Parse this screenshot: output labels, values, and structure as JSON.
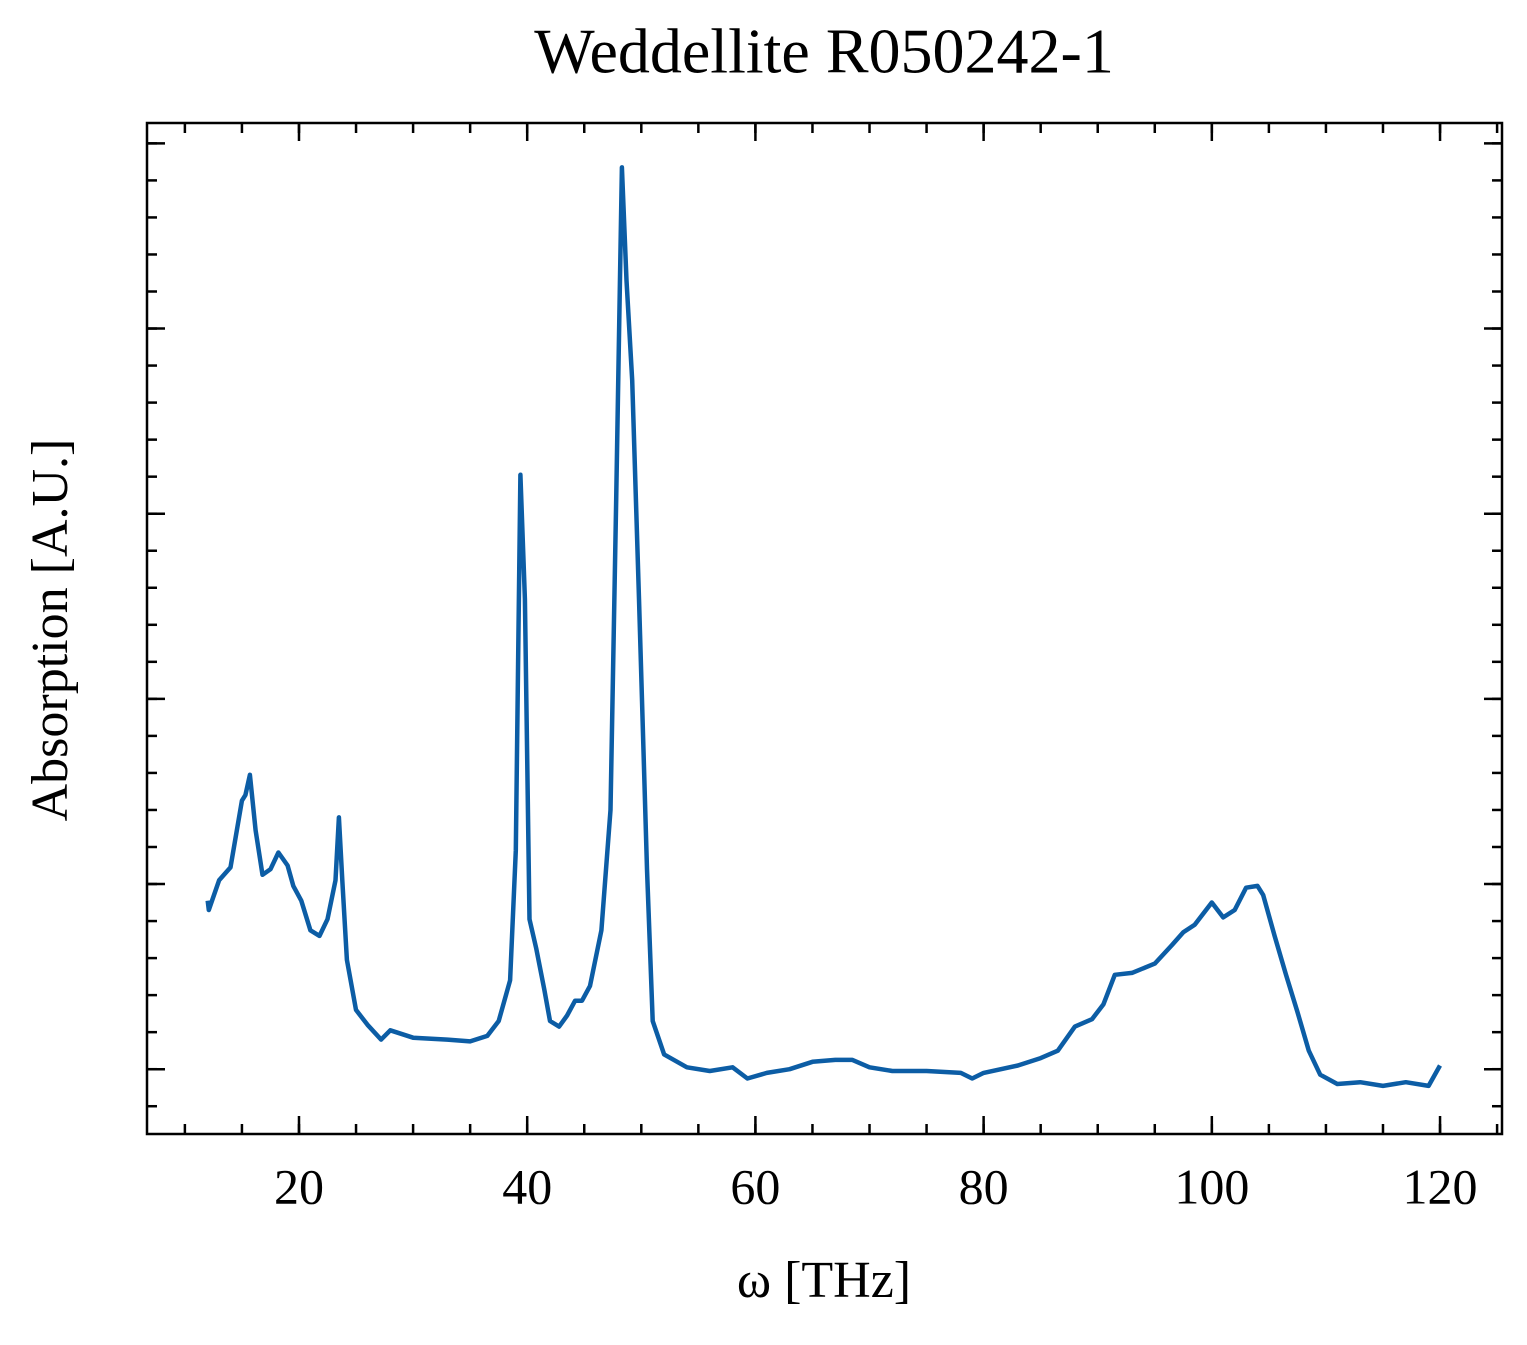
{
  "chart_data": {
    "type": "line",
    "title": "Weddellite R050242-1",
    "xlabel": "ω [THz]",
    "ylabel": "Absorption [A.U.]",
    "x": [
      12.0,
      12.1,
      13,
      14,
      15,
      15.3,
      15.7,
      16.2,
      16.8,
      17.5,
      18.2,
      19,
      19.5,
      20.2,
      21,
      21.8,
      22.5,
      23.2,
      23.5,
      23.8,
      24.2,
      25,
      26,
      27.2,
      28,
      30,
      33,
      35,
      36.5,
      37.5,
      38.5,
      39.0,
      39.4,
      39.8,
      40.2,
      40.8,
      41.5,
      42,
      42.8,
      43.5,
      44.2,
      44.8,
      45.5,
      46.5,
      47.3,
      47.8,
      48.3,
      48.7,
      49.2,
      49.8,
      50.5,
      51,
      52,
      54,
      56,
      58,
      59.3,
      61,
      63,
      65,
      67,
      68.5,
      70,
      72,
      75,
      78,
      79,
      80,
      83,
      85,
      86.5,
      88,
      89.5,
      90.5,
      91.5,
      93,
      95,
      96.5,
      97.5,
      98.5,
      100,
      101,
      102,
      103,
      104,
      104.5,
      105.5,
      106.5,
      107.5,
      108.5,
      109.5,
      111,
      113,
      115,
      117,
      119,
      120
    ],
    "series": [
      {
        "name": "Weddellite R050242-1",
        "color": "#0c5da5",
        "values": [
          0.91,
          0.86,
          1.02,
          1.09,
          1.45,
          1.48,
          1.59,
          1.29,
          1.05,
          1.08,
          1.17,
          1.1,
          0.99,
          0.91,
          0.75,
          0.72,
          0.81,
          1.02,
          1.36,
          1.02,
          0.59,
          0.32,
          0.24,
          0.16,
          0.21,
          0.17,
          0.16,
          0.15,
          0.18,
          0.26,
          0.48,
          1.18,
          3.21,
          2.54,
          0.81,
          0.65,
          0.43,
          0.26,
          0.23,
          0.29,
          0.37,
          0.37,
          0.45,
          0.75,
          1.4,
          3.08,
          4.87,
          4.26,
          3.72,
          2.54,
          1.08,
          0.26,
          0.08,
          0.01,
          -0.01,
          0.01,
          -0.05,
          -0.02,
          0.0,
          0.04,
          0.05,
          0.05,
          0.01,
          -0.01,
          -0.01,
          -0.02,
          -0.05,
          -0.02,
          0.02,
          0.06,
          0.1,
          0.23,
          0.27,
          0.35,
          0.51,
          0.52,
          0.57,
          0.67,
          0.74,
          0.78,
          0.9,
          0.82,
          0.86,
          0.98,
          0.99,
          0.94,
          0.72,
          0.51,
          0.31,
          0.1,
          -0.03,
          -0.08,
          -0.07,
          -0.09,
          -0.07,
          -0.09,
          0.02
        ]
      }
    ],
    "xlim": [
      6.68,
      125.43
    ],
    "ylim": [
      -0.35,
      5.11
    ],
    "xticks": [
      20,
      40,
      60,
      80,
      100,
      120
    ],
    "yticks": [
      0,
      1,
      2,
      3,
      4,
      5
    ]
  }
}
